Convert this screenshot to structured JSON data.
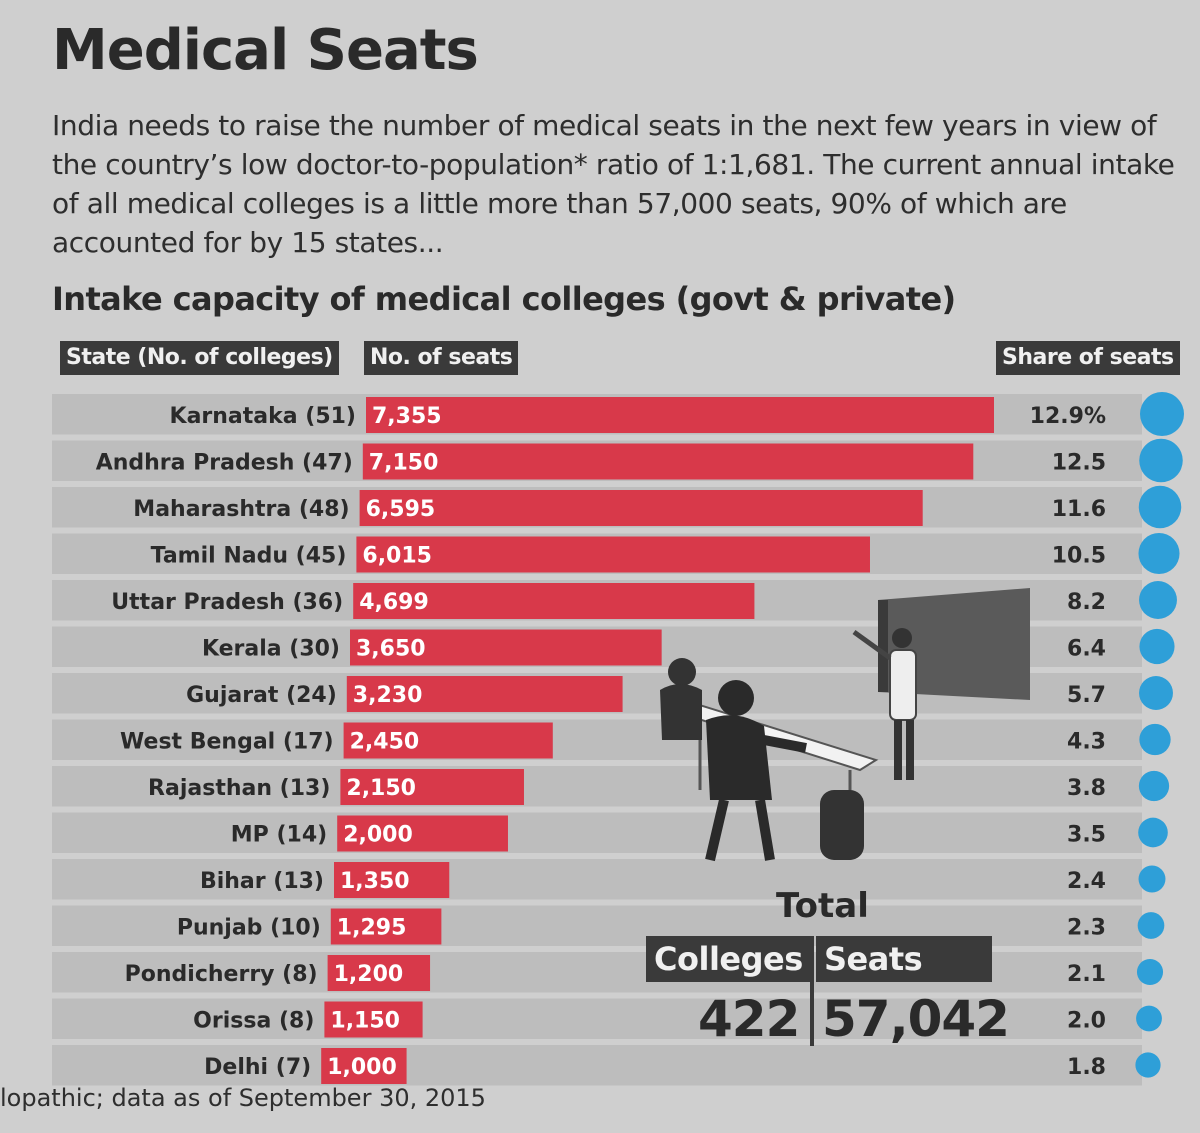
{
  "title": "Medical Seats",
  "intro": "India needs to raise the number of medical seats in the next few years in view of the country’s low doctor-to-population* ratio of 1:1,681. The current annual intake of all medical colleges is a little more than 57,000 seats, 90% of which are accounted for by 15 states...",
  "subtitle": "Intake capacity of medical colleges (govt & private)",
  "headers": {
    "state": "State (No. of colleges)",
    "seats": "No. of seats",
    "share": "Share of seats"
  },
  "chart_data": {
    "type": "bar",
    "title": "Intake capacity of medical colleges (govt & private)",
    "categories": [
      "Karnataka (51)",
      "Andhra Pradesh (47)",
      "Maharashtra (48)",
      "Tamil Nadu (45)",
      "Uttar Pradesh (36)",
      "Kerala (30)",
      "Gujarat (24)",
      "West Bengal (17)",
      "Rajasthan (13)",
      "MP (14)",
      "Bihar (13)",
      "Punjab (10)",
      "Pondicherry (8)",
      "Orissa (8)",
      "Delhi (7)"
    ],
    "series": [
      {
        "name": "No. of seats",
        "values": [
          7355,
          7150,
          6595,
          6015,
          4699,
          3650,
          3230,
          2450,
          2150,
          2000,
          1350,
          1295,
          1200,
          1150,
          1000
        ],
        "labels": [
          "7,355",
          "7,150",
          "6,595",
          "6,015",
          "4,699",
          "3,650",
          "3,230",
          "2,450",
          "2,150",
          "2,000",
          "1,350",
          "1,295",
          "1,200",
          "1,150",
          "1,000"
        ]
      },
      {
        "name": "Share of seats",
        "values": [
          12.9,
          12.5,
          11.6,
          10.5,
          8.2,
          6.4,
          5.7,
          4.3,
          3.8,
          3.5,
          2.4,
          2.3,
          2.1,
          2.0,
          1.8
        ],
        "labels": [
          "12.9%",
          "12.5",
          "11.6",
          "10.5",
          "8.2",
          "6.4",
          "5.7",
          "4.3",
          "3.8",
          "3.5",
          "2.4",
          "2.3",
          "2.1",
          "2.0",
          "1.8"
        ]
      }
    ],
    "colors": {
      "bar": "#d8394a",
      "dot": "#2e9fd8",
      "stripe": "#bdbdbd"
    }
  },
  "total": {
    "label": "Total",
    "colleges_label": "Colleges",
    "seats_label": "Seats",
    "colleges_value": "422",
    "seats_value": "57,042"
  },
  "footnote": "lopathic; data as of September 30, 2015"
}
